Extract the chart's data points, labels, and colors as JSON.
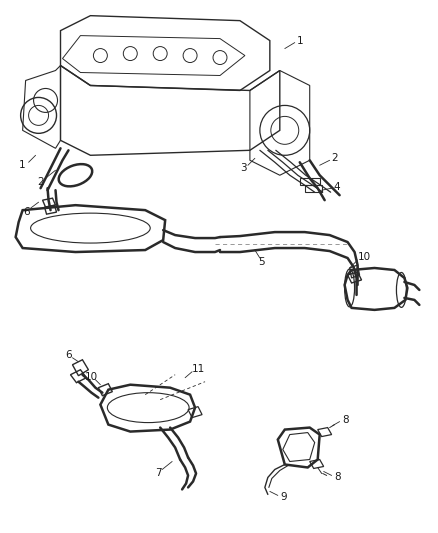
{
  "bg_color": "#ffffff",
  "line_color": "#2a2a2a",
  "label_color": "#1a1a1a",
  "label_fontsize": 7.5,
  "figsize": [
    4.38,
    5.33
  ],
  "dpi": 100,
  "engine_color": "#dddddd",
  "pipe_lw": 1.8,
  "thin_lw": 0.8
}
